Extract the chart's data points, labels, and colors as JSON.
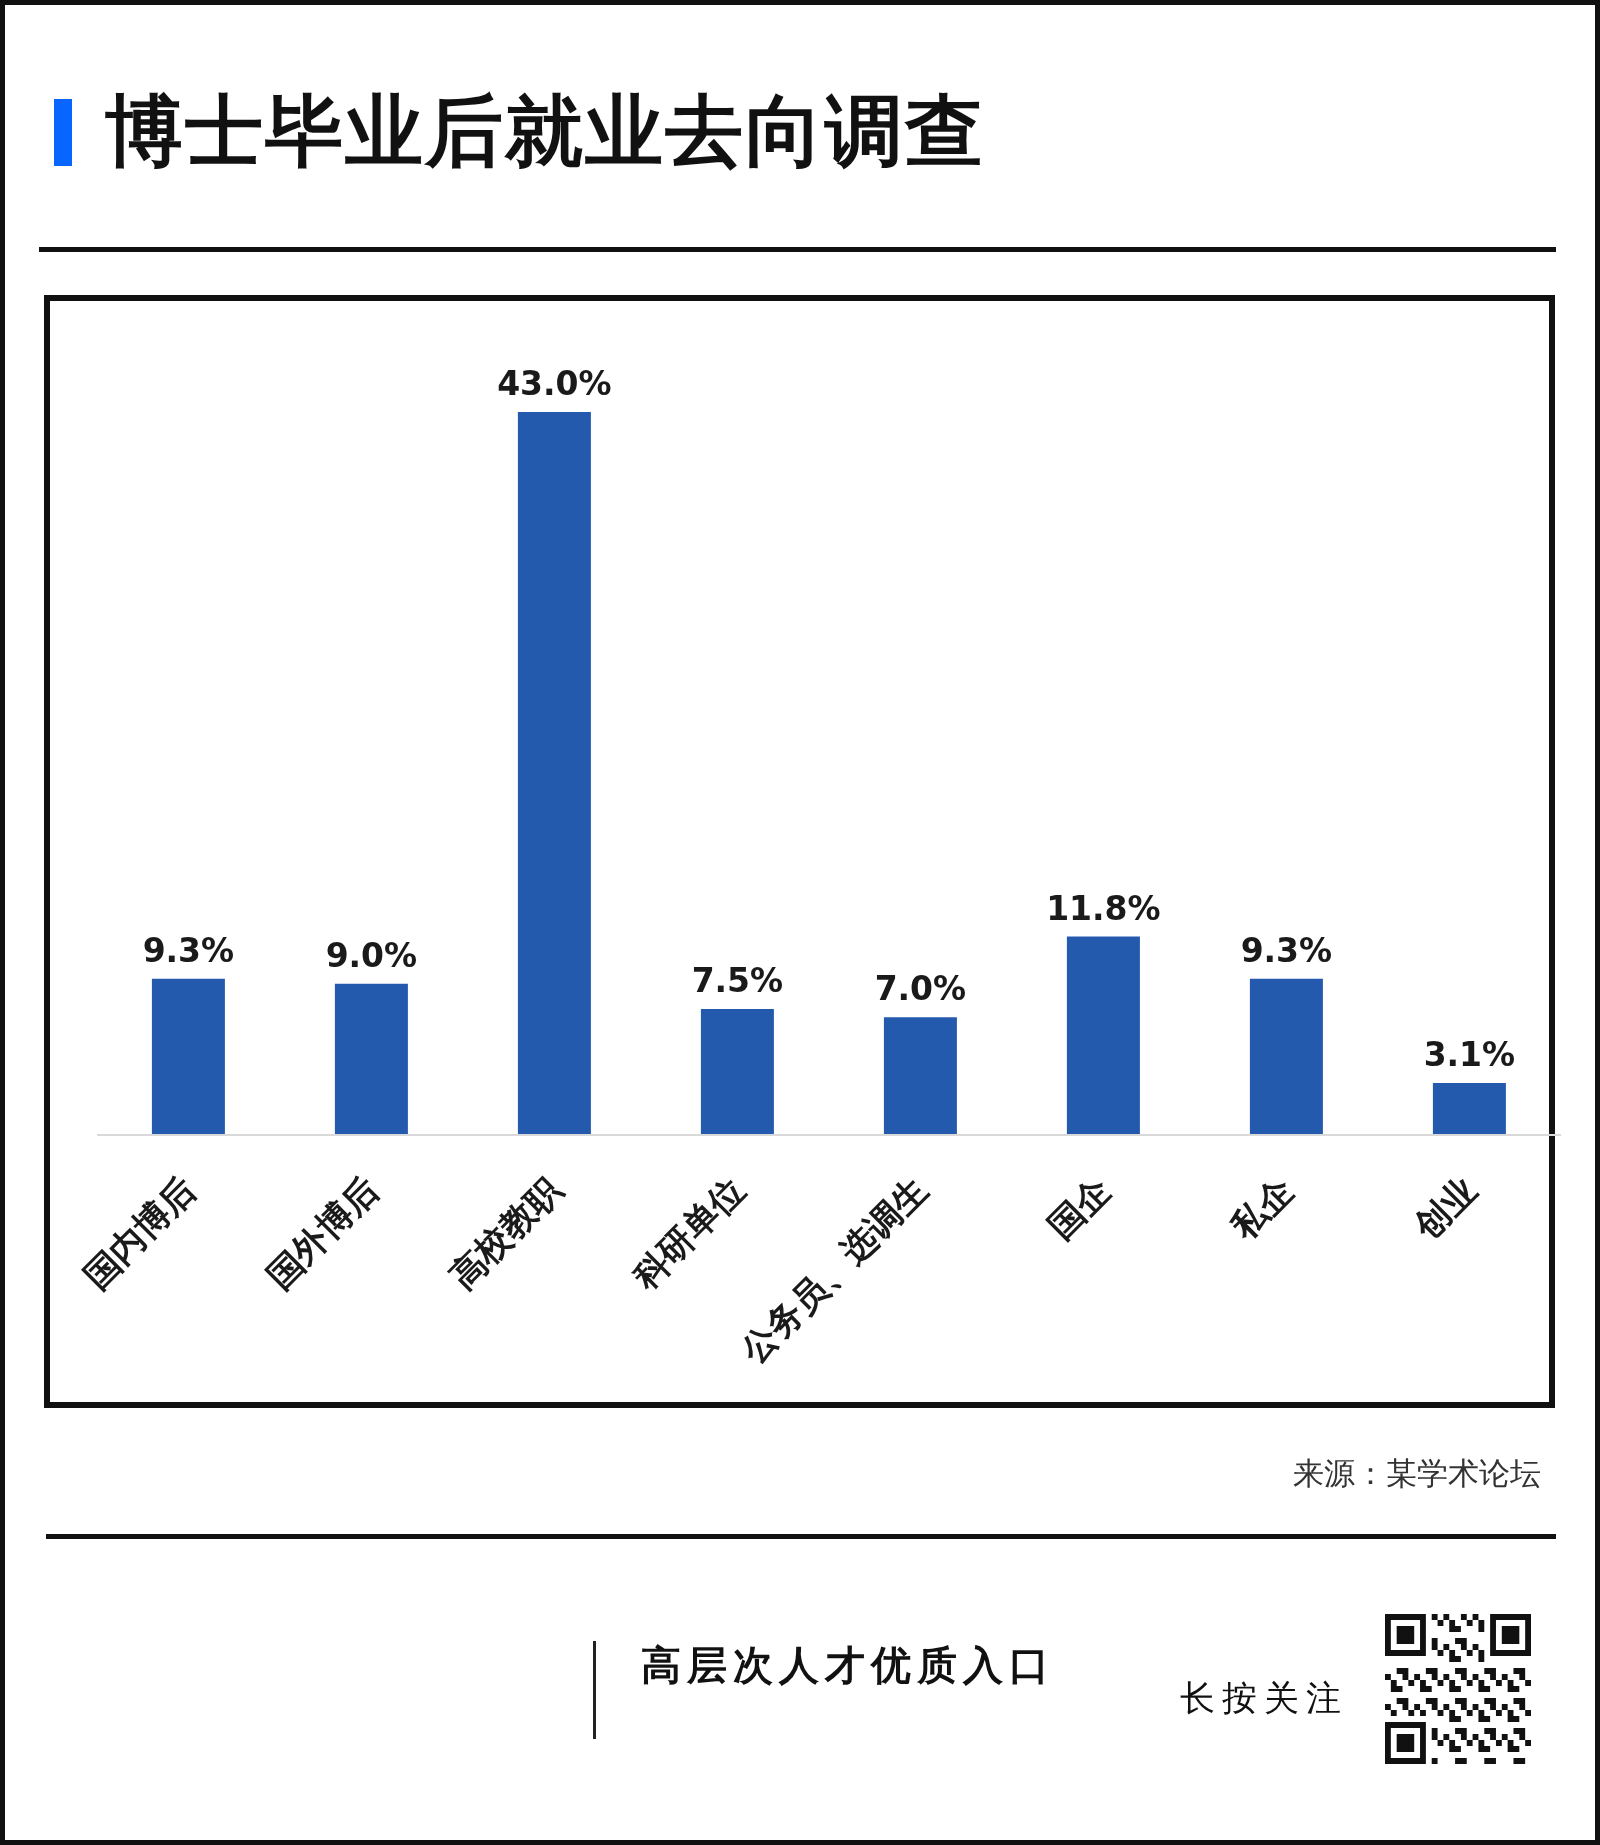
{
  "chart_data": {
    "type": "bar",
    "title": "博士毕业后就业去向调查",
    "categories": [
      "国内博后",
      "国外博后",
      "高校教职",
      "科研单位",
      "公务员、选调生",
      "国企",
      "私企",
      "创业"
    ],
    "values": [
      9.3,
      9.0,
      43.0,
      7.5,
      7.0,
      11.8,
      9.3,
      3.1
    ],
    "value_labels": [
      "9.3%",
      "9.0%",
      "43.0%",
      "7.5%",
      "7.0%",
      "11.8%",
      "9.3%",
      "3.1%"
    ],
    "color": "#245aae",
    "tick_labels": "x",
    "annotations": [
      "来源：某学术论坛",
      "高层次人才优质入口",
      "长按关注"
    ]
  }
}
